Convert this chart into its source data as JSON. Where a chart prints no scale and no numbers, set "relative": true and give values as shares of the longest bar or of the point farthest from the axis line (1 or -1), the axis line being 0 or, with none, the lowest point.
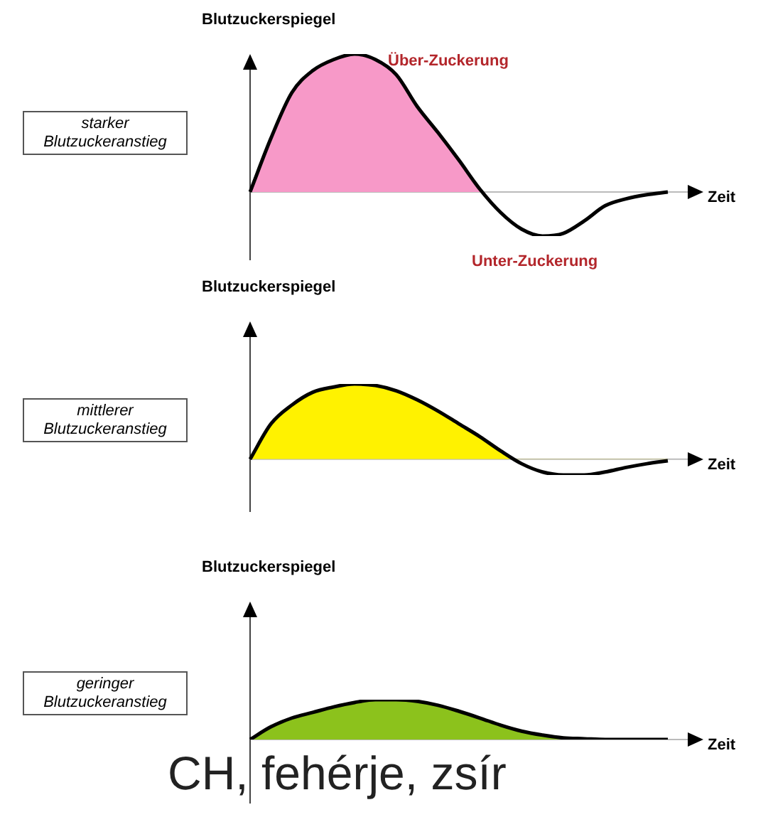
{
  "chart_data": [
    {
      "type": "area",
      "relative": true,
      "ylabel": "Blutzuckerspiegel",
      "xlabel": "Zeit",
      "categories": [
        null,
        null,
        null,
        null,
        null,
        null,
        null,
        null,
        null,
        null,
        null,
        null,
        null,
        null,
        null,
        null,
        null,
        null,
        null,
        null,
        null
      ],
      "series": [
        {
          "color": "#f799c8",
          "values": [
            0,
            0.39,
            0.72,
            0.88,
            0.96,
            1,
            0.96,
            0.85,
            0.62,
            0.43,
            0.23,
            0.02,
            -0.15,
            -0.27,
            -0.32,
            -0.3,
            -0.21,
            -0.1,
            -0.05,
            -0.02,
            0
          ]
        }
      ],
      "annotations": [
        "starker\nBlutzuckeranstieg",
        "Über-Zuckerung",
        "Unter-Zuckerung"
      ]
    },
    {
      "type": "area",
      "relative": true,
      "ylabel": "Blutzuckerspiegel",
      "xlabel": "Zeit",
      "categories": [
        null,
        null,
        null,
        null,
        null,
        null,
        null,
        null,
        null,
        null,
        null,
        null,
        null,
        null,
        null,
        null,
        null,
        null,
        null,
        null,
        null
      ],
      "series": [
        {
          "color": "#fff200",
          "values": [
            0,
            0.47,
            0.72,
            0.89,
            0.96,
            1,
            0.98,
            0.91,
            0.79,
            0.64,
            0.47,
            0.3,
            0.11,
            -0.06,
            -0.17,
            -0.21,
            -0.21,
            -0.17,
            -0.11,
            -0.06,
            -0.02
          ]
        }
      ],
      "annotations": [
        "mittlerer\nBlutzuckeranstieg"
      ]
    },
    {
      "type": "area",
      "relative": true,
      "ylabel": "Blutzuckerspiegel",
      "xlabel": "Zeit",
      "categories": [
        null,
        null,
        null,
        null,
        null,
        null,
        null,
        null,
        null,
        null,
        null,
        null,
        null,
        null,
        null,
        null,
        null,
        null,
        null,
        null,
        null
      ],
      "series": [
        {
          "color": "#8cc21c",
          "values": [
            0,
            0.32,
            0.54,
            0.68,
            0.82,
            0.93,
            1,
            1,
            0.96,
            0.86,
            0.71,
            0.54,
            0.36,
            0.21,
            0.11,
            0.04,
            0.02,
            0,
            0,
            0,
            0
          ]
        }
      ],
      "annotations": [
        "geringer\nBlutzuckeranstieg",
        "CH, fehérje, zsír"
      ]
    }
  ]
}
